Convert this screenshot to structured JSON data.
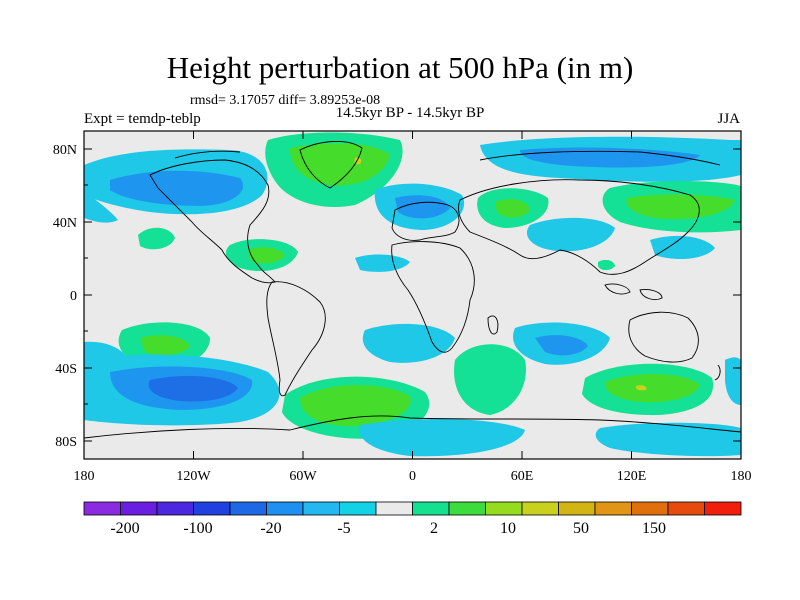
{
  "title": "Height perturbation at 500 hPa (in m)",
  "stats": "rmsd= 3.17057 diff= 3.89253e-08",
  "experiment": "Expt = temdp-teblp",
  "period": "14.5kyr BP - 14.5kyr BP",
  "season": "JJA",
  "axes": {
    "lat_labels": [
      "80N",
      "40N",
      "0",
      "40S",
      "80S"
    ],
    "lon_labels": [
      "180",
      "120W",
      "60W",
      "0",
      "60E",
      "120E",
      "180"
    ]
  },
  "colorbar": {
    "colors": [
      "#8a2be2",
      "#6a1ee0",
      "#4b28e0",
      "#2040e0",
      "#1e68e6",
      "#1e90f0",
      "#24b8f0",
      "#14d2e6",
      "#eaeaea",
      "#14e090",
      "#3cdc3c",
      "#96dc1e",
      "#c8d21e",
      "#d2b414",
      "#e09614",
      "#e0700c",
      "#e64a0c",
      "#f01e0a"
    ],
    "labels": [
      "-200",
      "-100",
      "-20",
      "-5",
      "2",
      "10",
      "50",
      "150"
    ]
  },
  "map_colors": {
    "background": "#eaeaea",
    "blue_light": "#1ec8e6",
    "blue_mid": "#1e96f0",
    "blue_dark": "#1e6ee6",
    "green_light": "#14e096",
    "green_mid": "#46dc2c",
    "yellow": "#c8d21e"
  }
}
